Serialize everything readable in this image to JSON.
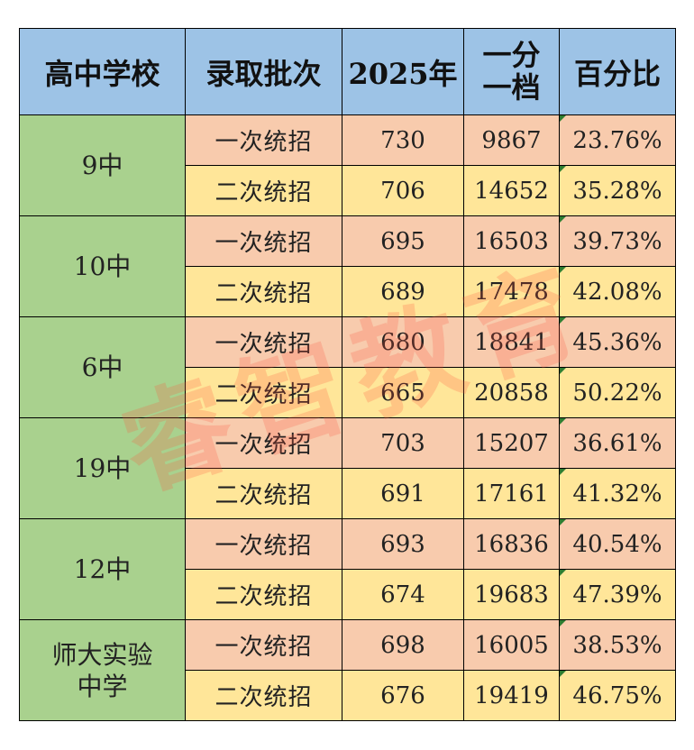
{
  "headers": {
    "school": "高中学校",
    "batch": "录取批次",
    "score": "2025年",
    "rank_line1": "一分",
    "rank_line2": "一档",
    "percent": "百分比"
  },
  "schools": [
    {
      "name_line1": "9中",
      "name_line2": "",
      "rows": [
        {
          "batch": "一次统招",
          "score": "730",
          "rank": "9867",
          "percent": "23.76%"
        },
        {
          "batch": "二次统招",
          "score": "706",
          "rank": "14652",
          "percent": "35.28%"
        }
      ]
    },
    {
      "name_line1": "10中",
      "name_line2": "",
      "rows": [
        {
          "batch": "一次统招",
          "score": "695",
          "rank": "16503",
          "percent": "39.73%"
        },
        {
          "batch": "二次统招",
          "score": "689",
          "rank": "17478",
          "percent": "42.08%"
        }
      ]
    },
    {
      "name_line1": "6中",
      "name_line2": "",
      "rows": [
        {
          "batch": "一次统招",
          "score": "680",
          "rank": "18841",
          "percent": "45.36%"
        },
        {
          "batch": "二次统招",
          "score": "665",
          "rank": "20858",
          "percent": "50.22%"
        }
      ]
    },
    {
      "name_line1": "19中",
      "name_line2": "",
      "rows": [
        {
          "batch": "一次统招",
          "score": "703",
          "rank": "15207",
          "percent": "36.61%"
        },
        {
          "batch": "二次统招",
          "score": "691",
          "rank": "17161",
          "percent": "41.32%"
        }
      ]
    },
    {
      "name_line1": "12中",
      "name_line2": "",
      "rows": [
        {
          "batch": "一次统招",
          "score": "693",
          "rank": "16836",
          "percent": "40.54%"
        },
        {
          "batch": "二次统招",
          "score": "674",
          "rank": "19683",
          "percent": "47.39%"
        }
      ]
    },
    {
      "name_line1": "师大实验",
      "name_line2": "中学",
      "rows": [
        {
          "batch": "一次统招",
          "score": "698",
          "rank": "16005",
          "percent": "38.53%"
        },
        {
          "batch": "二次统招",
          "score": "676",
          "rank": "19419",
          "percent": "46.75%"
        }
      ]
    }
  ],
  "watermark": "睿智教育",
  "colors": {
    "header": "#9dc3e6",
    "school": "#a9d18e",
    "row1": "#f8cbad",
    "row2": "#ffe699"
  }
}
